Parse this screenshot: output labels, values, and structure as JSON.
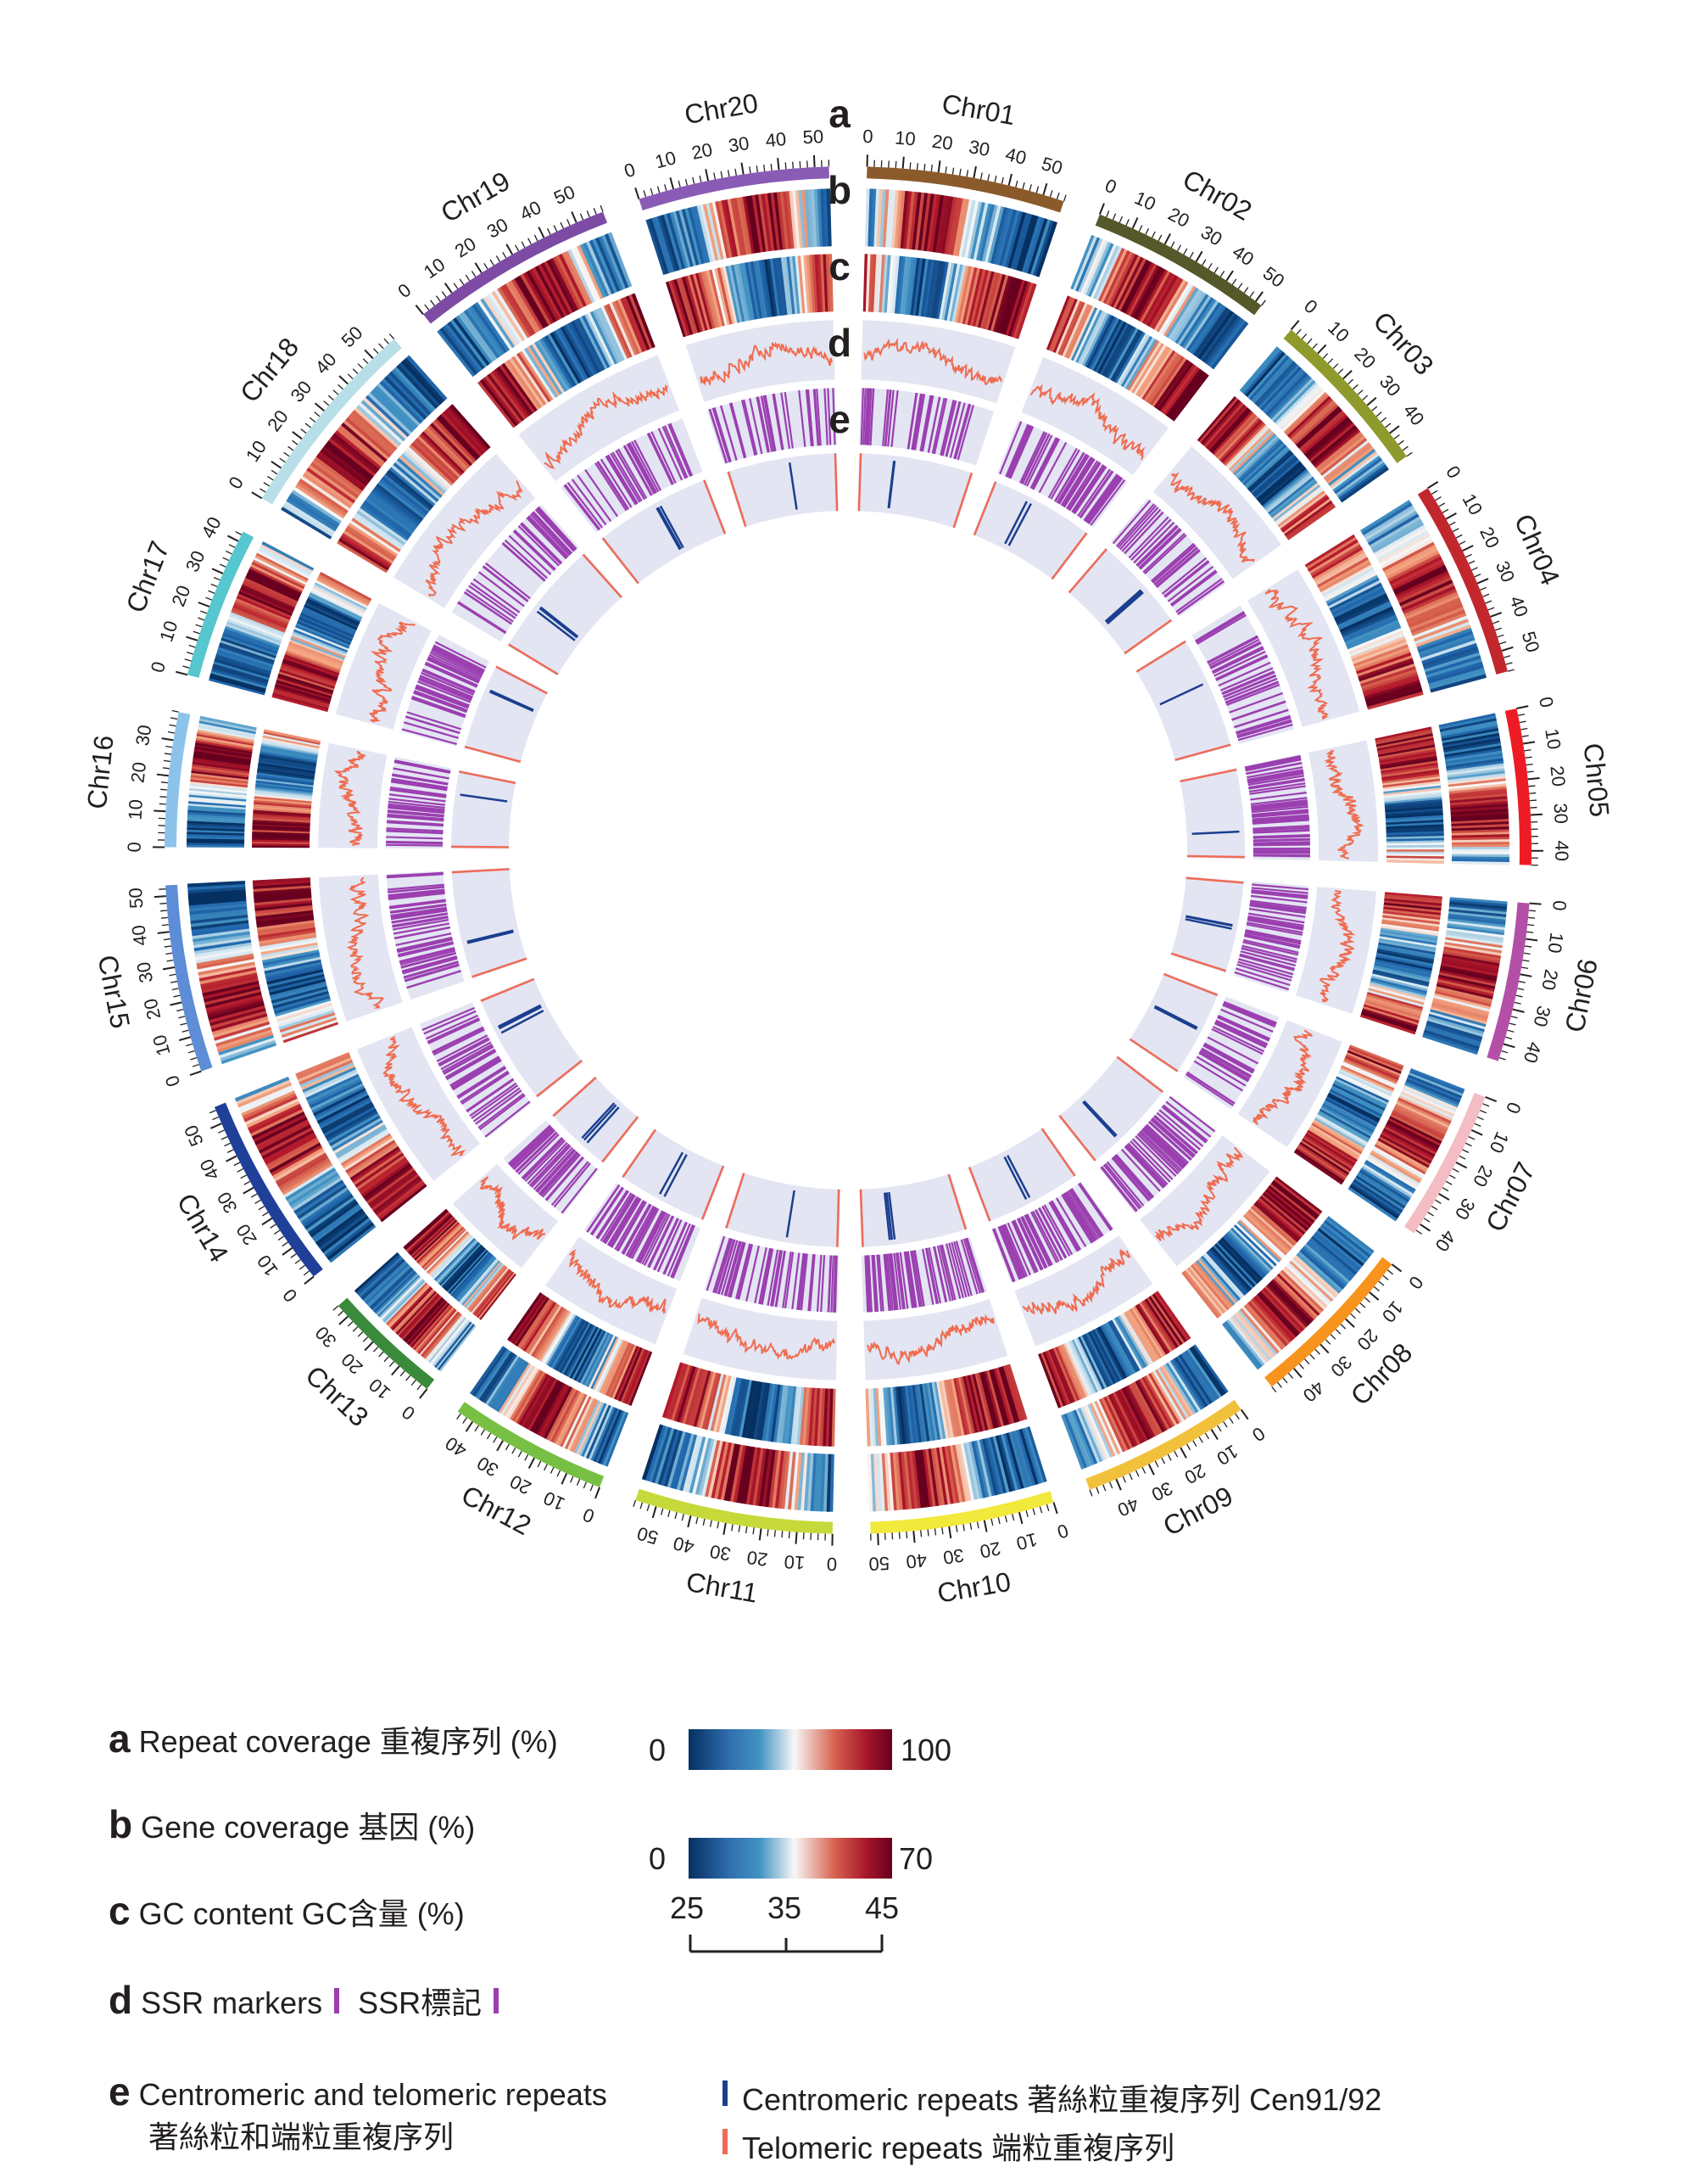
{
  "chromosomes": [
    {
      "name": "Chr01",
      "length": 56,
      "color": "#8b5a2b"
    },
    {
      "name": "Chr02",
      "length": 52,
      "color": "#55592a"
    },
    {
      "name": "Chr03",
      "length": 48,
      "color": "#8f9a2c"
    },
    {
      "name": "Chr04",
      "length": 56,
      "color": "#c1272d"
    },
    {
      "name": "Chr05",
      "length": 44,
      "color": "#ed1c24"
    },
    {
      "name": "Chr06",
      "length": 45,
      "color": "#b44fa8"
    },
    {
      "name": "Chr07",
      "length": 43,
      "color": "#f4bcc3"
    },
    {
      "name": "Chr08",
      "length": 48,
      "color": "#f7941d"
    },
    {
      "name": "Chr09",
      "length": 48,
      "color": "#f2c13c"
    },
    {
      "name": "Chr10",
      "length": 52,
      "color": "#f1e93b"
    },
    {
      "name": "Chr11",
      "length": 56,
      "color": "#c6d93a"
    },
    {
      "name": "Chr12",
      "length": 45,
      "color": "#78c043"
    },
    {
      "name": "Chr13",
      "length": 34,
      "color": "#3a8a3b"
    },
    {
      "name": "Chr14",
      "length": 55,
      "color": "#1f3f99"
    },
    {
      "name": "Chr15",
      "length": 53,
      "color": "#5d8dd6"
    },
    {
      "name": "Chr16",
      "length": 38,
      "color": "#8cc3ea"
    },
    {
      "name": "Chr17",
      "length": 43,
      "color": "#56c6cf"
    },
    {
      "name": "Chr18",
      "length": 58,
      "color": "#b8dfe8"
    },
    {
      "name": "Chr19",
      "length": 58,
      "color": "#7d4ba3"
    },
    {
      "name": "Chr20",
      "length": 54,
      "color": "#8a5bb5"
    }
  ],
  "track_letters": [
    "a",
    "b",
    "c",
    "d",
    "e"
  ],
  "colors": {
    "heat_low": "#053061",
    "heat_mid_low": "#4393c3",
    "heat_mid": "#f7f7f7",
    "heat_mid_high": "#d6604d",
    "heat_high": "#67001f",
    "track_bg": "#e3e5f3",
    "gc_line": "#ef6c4f",
    "ssr": "#9b3fb0",
    "centromeric": "#1b3f8f",
    "telomeric": "#f06a55"
  },
  "legend": {
    "a": {
      "letter": "a",
      "text": "Repeat coverage 重複序列 (%)",
      "scale_min": "0",
      "scale_max": "100"
    },
    "b": {
      "letter": "b",
      "text": "Gene coverage 基因 (%)",
      "scale_min": "0",
      "scale_max": "70"
    },
    "c": {
      "letter": "c",
      "text": "GC content GC含量 (%)",
      "scale_ticks": [
        "25",
        "35",
        "45"
      ]
    },
    "d": {
      "letter": "d",
      "text": "SSR markers",
      "text2": "SSR標記"
    },
    "e": {
      "letter": "e",
      "text": "Centromeric and telomeric repeats",
      "text_sub": "著絲粒和端粒重複序列",
      "key1": "Centromeric repeats 著絲粒重複序列 Cen91/92",
      "key2": "Telomeric repeats 端粒重複序列"
    }
  }
}
